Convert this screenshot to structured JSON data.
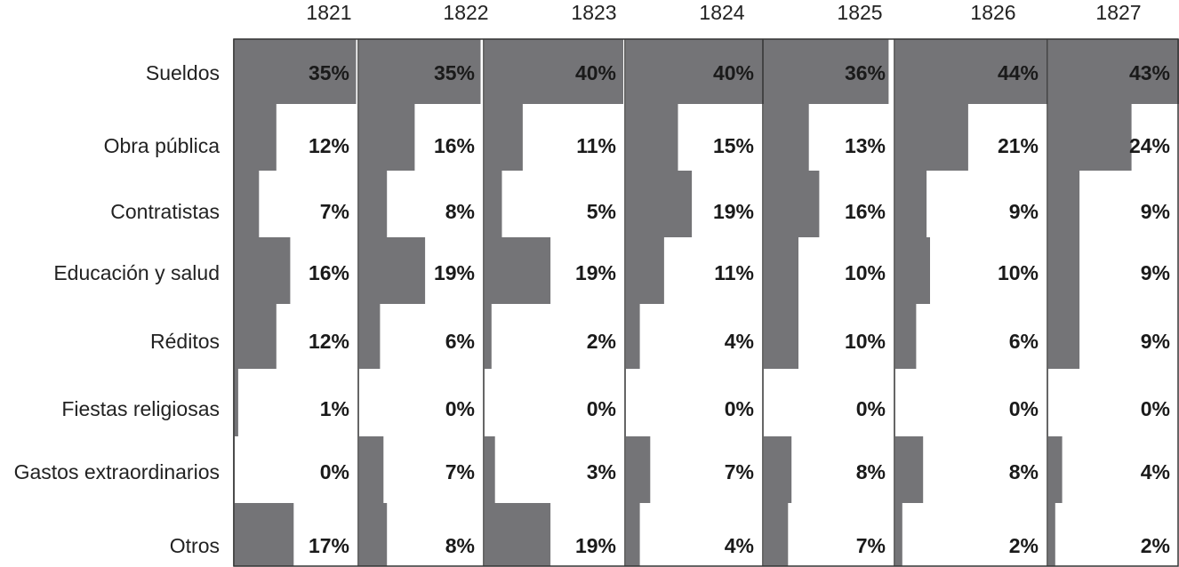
{
  "chart_data": {
    "type": "bar",
    "title": "",
    "xlabel": "",
    "ylabel": "",
    "years": [
      "1821",
      "1822",
      "1823",
      "1824",
      "1825",
      "1826",
      "1827"
    ],
    "categories": [
      "Sueldos",
      "Obra pública",
      "Contratistas",
      "Educación y salud",
      "Réditos",
      "Fiestas religiosas",
      "Gastos extraordinarios",
      "Otros"
    ],
    "unit": "%",
    "values": {
      "1821": [
        35,
        12,
        7,
        16,
        12,
        1,
        0,
        17
      ],
      "1822": [
        35,
        16,
        8,
        19,
        6,
        0,
        7,
        8
      ],
      "1823": [
        40,
        11,
        5,
        19,
        2,
        0,
        3,
        19
      ],
      "1824": [
        40,
        15,
        19,
        11,
        4,
        0,
        7,
        4
      ],
      "1825": [
        36,
        13,
        16,
        10,
        10,
        0,
        8,
        7
      ],
      "1826": [
        44,
        21,
        9,
        10,
        6,
        0,
        8,
        2
      ],
      "1827": [
        43,
        24,
        9,
        9,
        9,
        0,
        4,
        2
      ]
    },
    "labels": {
      "1821": [
        "35%",
        "12%",
        "7%",
        "16%",
        "12%",
        "1%",
        "0%",
        "17%"
      ],
      "1822": [
        "35%",
        "16%",
        "8%",
        "19%",
        "6%",
        "0%",
        "7%",
        "8%"
      ],
      "1823": [
        "40%",
        "11%",
        "5%",
        "19%",
        "2%",
        "0%",
        "3%",
        "19%"
      ],
      "1824": [
        "40%",
        "15%",
        "19%",
        "11%",
        "4%",
        "0%",
        "7%",
        "4%"
      ],
      "1825": [
        "36%",
        "13%",
        "16%",
        "10%",
        "10%",
        "0%",
        "8%",
        "7%"
      ],
      "1826": [
        "44%",
        "21%",
        "9%",
        "10%",
        "6%",
        "0%",
        "8%",
        "2%"
      ],
      "1827": [
        "43%",
        "24%",
        "9%",
        "9%",
        "9%",
        "0%",
        "4%",
        "2%"
      ]
    },
    "colors": {
      "bar": "#747477",
      "border": "#333333",
      "background": "#ffffff"
    }
  }
}
